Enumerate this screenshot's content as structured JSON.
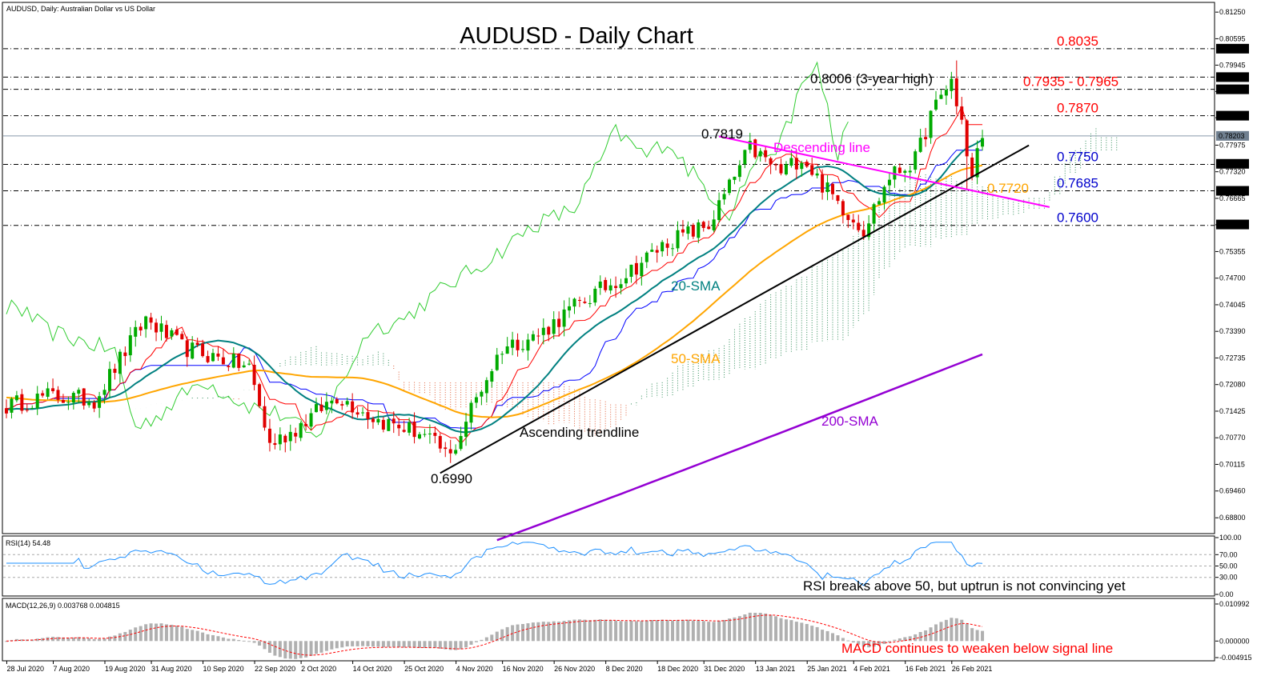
{
  "header": {
    "symbol_info": "AUDUSD, Daily:  Australian Dollar vs US Dollar"
  },
  "chart_data": [
    {
      "type": "candlestick",
      "title": "AUDUSD - Daily Chart",
      "ylim": [
        0.6845,
        0.8145
      ],
      "y_ticks": [
        "0.81250",
        "0.80595",
        "0.79945",
        "0.79295",
        "0.78650",
        "0.77975",
        "0.77320",
        "0.76665",
        "0.76015",
        "0.75355",
        "0.74700",
        "0.74045",
        "0.73390",
        "0.72735",
        "0.72080",
        "0.71425",
        "0.70770",
        "0.70115",
        "0.69460",
        "0.68800"
      ],
      "price_tags": [
        {
          "label": "0.80350",
          "value": 0.8035,
          "color": "#000000"
        },
        {
          "label": "0.79650",
          "value": 0.7965,
          "color": "#000000"
        },
        {
          "label": "0.79350",
          "value": 0.7935,
          "color": "#000000"
        },
        {
          "label": "0.78700",
          "value": 0.787,
          "color": "#000000"
        },
        {
          "label": "0.78203",
          "value": 0.78203,
          "color": "#708090"
        },
        {
          "label": "0.77515",
          "value": 0.77515,
          "color": "#000000"
        },
        {
          "label": "0.76850",
          "value": 0.7685,
          "color": "#000000"
        },
        {
          "label": "0.76022",
          "value": 0.76022,
          "color": "#000000"
        }
      ],
      "x_labels": [
        "28 Jul 2020",
        "7 Aug 2020",
        "19 Aug 2020",
        "31 Aug 2020",
        "10 Sep 2020",
        "22 Sep 2020",
        "2 Oct 2020",
        "14 Oct 2020",
        "25 Oct 2020",
        "4 Nov 2020",
        "16 Nov 2020",
        "26 Nov 2020",
        "8 Dec 2020",
        "18 Dec 2020",
        "31 Dec 2020",
        "13 Jan 2021",
        "25 Jan 2021",
        "4 Feb 2021",
        "16 Feb 2021",
        "26 Feb 2021"
      ],
      "levels": [
        {
          "value": 0.8035,
          "label": "0.8035",
          "color": "#ff0000"
        },
        {
          "value": 0.7965,
          "label": "",
          "color": "#ff0000"
        },
        {
          "value": 0.7935,
          "label": "0.7935 - 0.7965",
          "color": "#ff0000"
        },
        {
          "value": 0.787,
          "label": "0.7870",
          "color": "#ff0000"
        },
        {
          "value": 0.775,
          "label": "0.7750",
          "color": "#0000cc"
        },
        {
          "value": 0.7685,
          "label": "0.7685",
          "color": "#0000cc"
        },
        {
          "value": 0.76,
          "label": "0.7600",
          "color": "#0000cc"
        }
      ],
      "annotations": {
        "high": "0.8006 (3-year high)",
        "peak": "0.7819",
        "low": "0.6990",
        "sma50_value": "0.7720",
        "descending_line": "Descending line",
        "ascending_trendline": "Ascending trendline",
        "sma20": "20-SMA",
        "sma50": "50-SMA",
        "sma200": "200-SMA"
      },
      "key_closes": [
        {
          "date": "28 Jul 2020",
          "close": 0.7155
        },
        {
          "date": "31 Aug 2020",
          "close": 0.737
        },
        {
          "date": "22 Sep 2020",
          "close": 0.705
        },
        {
          "date": "14 Oct 2020",
          "close": 0.71
        },
        {
          "date": "2 Nov 2020",
          "close": 0.702
        },
        {
          "date": "31 Dec 2020",
          "close": 0.77
        },
        {
          "date": "6 Jan 2021",
          "close": 0.781
        },
        {
          "date": "2 Feb 2021",
          "close": 0.76
        },
        {
          "date": "25 Feb 2021",
          "close": 0.795
        },
        {
          "date": "5 Mar 2021",
          "close": 0.778
        }
      ],
      "colors": {
        "bull": "#00aa00",
        "bear": "#e00000",
        "sma20": "#008080",
        "sma50": "#ffa500",
        "sma200": "#9400d3",
        "tenkan": "#ff0000",
        "kijun": "#0000ff",
        "chikou": "#32cd32",
        "descending": "#ff00ff",
        "trend": "#000000"
      }
    },
    {
      "type": "line",
      "name": "RSI(14) 54.48",
      "ylim": [
        0,
        100
      ],
      "y_ticks": [
        "100.00",
        "70.00",
        "50.00",
        "30.00",
        "0.00"
      ],
      "current": 54.48,
      "note": "RSI breaks above 50, but uptrun is not convincing yet"
    },
    {
      "type": "bar",
      "name": "MACD(12,26,9) 0.003768 0.004815",
      "y_ticks": [
        "0.010992",
        "0.000000",
        "-0.004915"
      ],
      "macd": 0.003768,
      "signal": 0.004815,
      "note": "MACD continues to weaken below signal line"
    }
  ]
}
